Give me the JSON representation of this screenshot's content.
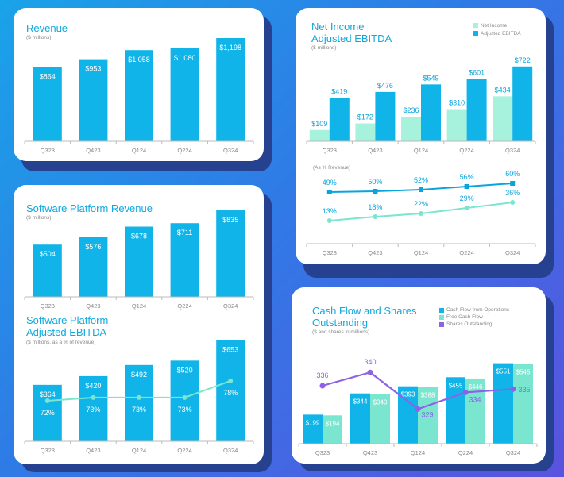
{
  "colors": {
    "blue": "#10b4e8",
    "blue_dark": "#0aa4dd",
    "mint": "#a6f2dd",
    "mint_line": "#7ae6cf",
    "purple": "#8d62e6",
    "axis": "#bbbbbb",
    "tick": "#888888"
  },
  "cards": {
    "revenue": {
      "title": "Revenue",
      "subtitle": "($ millions)"
    },
    "net_income": {
      "title_line1": "Net Income",
      "title_line2": "Adjusted EBITDA",
      "subtitle": "($ millions)",
      "legend": [
        "Net Income",
        "Adjusted EBITDA"
      ],
      "pct_label": "(As % Revenue)"
    },
    "software": {
      "title": "Software Platform Revenue",
      "subtitle": "($ millions)"
    },
    "sw_ebitda": {
      "title_line1": "Software Platform",
      "title_line2": "Adjusted EBITDA",
      "subtitle": "($ millions, as a % of revenue)"
    },
    "cashflow": {
      "title_line1": "Cash Flow and Shares",
      "title_line2": "Outstanding",
      "subtitle": "($ and shares in millions)",
      "legend": [
        "Cash Flow from Operations",
        "Free Cash Flow",
        "Shares Outstanding"
      ]
    }
  },
  "chart_data": [
    {
      "id": "revenue",
      "type": "bar",
      "title": "Revenue",
      "ylabel": "($ millions)",
      "categories": [
        "Q323",
        "Q423",
        "Q124",
        "Q224",
        "Q324"
      ],
      "values": [
        864,
        953,
        1058,
        1080,
        1198
      ],
      "labels": [
        "$864",
        "$953",
        "$1,058",
        "$1,080",
        "$1,198"
      ]
    },
    {
      "id": "net_income",
      "type": "bar",
      "title": "Net Income Adjusted EBITDA",
      "ylabel": "($ millions)",
      "categories": [
        "Q323",
        "Q423",
        "Q124",
        "Q224",
        "Q324"
      ],
      "series": [
        {
          "name": "Net Income",
          "values": [
            109,
            172,
            236,
            310,
            434
          ],
          "labels": [
            "$109",
            "$172",
            "$236",
            "$310",
            "$434"
          ]
        },
        {
          "name": "Adjusted EBITDA",
          "values": [
            419,
            476,
            549,
            601,
            722
          ],
          "labels": [
            "$419",
            "$476",
            "$549",
            "$601",
            "$722"
          ]
        }
      ]
    },
    {
      "id": "net_income_pct",
      "type": "line",
      "title": "(As % Revenue)",
      "categories": [
        "Q323",
        "Q423",
        "Q124",
        "Q224",
        "Q324"
      ],
      "series": [
        {
          "name": "Adjusted EBITDA",
          "values": [
            49,
            50,
            52,
            56,
            60
          ],
          "labels": [
            "49%",
            "50%",
            "52%",
            "56%",
            "60%"
          ]
        },
        {
          "name": "Net Income",
          "values": [
            13,
            18,
            22,
            29,
            36
          ],
          "labels": [
            "13%",
            "18%",
            "22%",
            "29%",
            "36%"
          ]
        }
      ]
    },
    {
      "id": "software",
      "type": "bar",
      "title": "Software Platform Revenue",
      "ylabel": "($ millions)",
      "categories": [
        "Q323",
        "Q423",
        "Q124",
        "Q224",
        "Q324"
      ],
      "values": [
        504,
        576,
        678,
        711,
        835
      ],
      "labels": [
        "$504",
        "$576",
        "$678",
        "$711",
        "$835"
      ]
    },
    {
      "id": "sw_ebitda",
      "type": "bar",
      "title": "Software Platform Adjusted EBITDA",
      "ylabel": "($ millions, as a % of revenue)",
      "categories": [
        "Q323",
        "Q423",
        "Q124",
        "Q224",
        "Q324"
      ],
      "values": [
        364,
        420,
        492,
        520,
        653
      ],
      "labels": [
        "$364",
        "$420",
        "$492",
        "$520",
        "$653"
      ],
      "pct_values": [
        72,
        73,
        73,
        73,
        78
      ],
      "pct_labels": [
        "72%",
        "73%",
        "73%",
        "73%",
        "78%"
      ]
    },
    {
      "id": "cashflow",
      "type": "bar",
      "title": "Cash Flow and Shares Outstanding",
      "ylabel": "($ and shares in millions)",
      "categories": [
        "Q323",
        "Q423",
        "Q124",
        "Q224",
        "Q324"
      ],
      "series": [
        {
          "name": "Cash Flow from Operations",
          "values": [
            199,
            344,
            393,
            455,
            551
          ],
          "labels": [
            "$199",
            "$344",
            "$393",
            "$455",
            "$551"
          ]
        },
        {
          "name": "Free Cash Flow",
          "values": [
            194,
            340,
            388,
            446,
            545
          ],
          "labels": [
            "$194",
            "$340",
            "$388",
            "$446",
            "$545"
          ]
        },
        {
          "name": "Shares Outstanding",
          "values": [
            336,
            340,
            329,
            334,
            335
          ],
          "labels": [
            "336",
            "340",
            "329",
            "334",
            "335"
          ]
        }
      ]
    }
  ]
}
